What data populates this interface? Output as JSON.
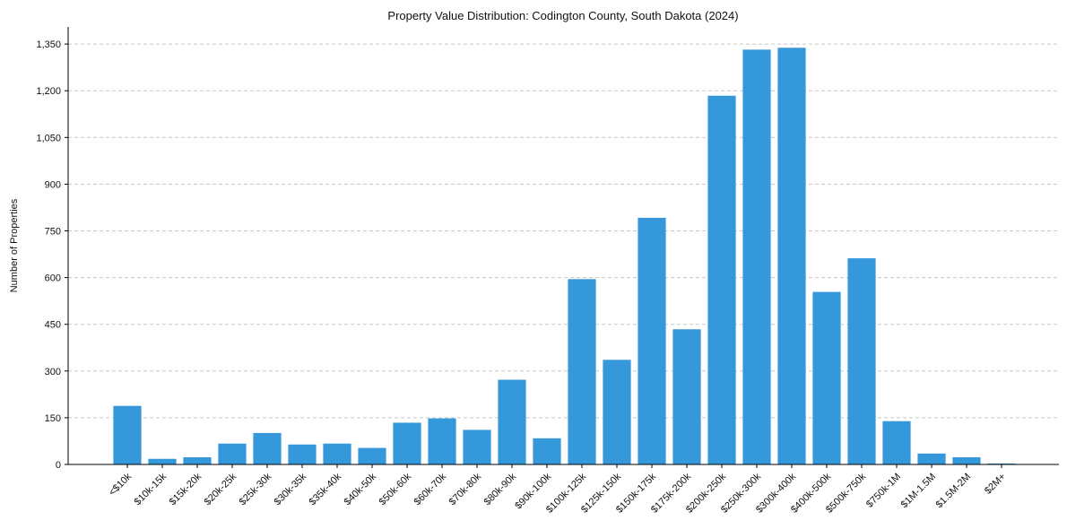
{
  "chart_data": {
    "type": "bar",
    "title": "Property Value Distribution: Codington County, South Dakota (2024)",
    "xlabel": "",
    "ylabel": "Number of Properties",
    "categories": [
      "<$10k",
      "$10k-15k",
      "$15k-20k",
      "$20k-25k",
      "$25k-30k",
      "$30k-35k",
      "$35k-40k",
      "$40k-50k",
      "$50k-60k",
      "$60k-70k",
      "$70k-80k",
      "$80k-90k",
      "$90k-100k",
      "$100k-125k",
      "$125k-150k",
      "$150k-175k",
      "$175k-200k",
      "$200k-250k",
      "$250k-300k",
      "$300k-400k",
      "$400k-500k",
      "$500k-750k",
      "$750k-1M",
      "$1M-1.5M",
      "$1.5M-2M",
      "$2M+"
    ],
    "values": [
      188,
      18,
      23,
      67,
      101,
      64,
      67,
      53,
      134,
      148,
      111,
      272,
      84,
      595,
      336,
      792,
      434,
      1184,
      1332,
      1338,
      554,
      662,
      139,
      35,
      23,
      3
    ],
    "yticks": [
      0,
      150,
      300,
      450,
      600,
      750,
      900,
      1050,
      1200,
      1350
    ],
    "ytick_labels": [
      "0",
      "150",
      "300",
      "450",
      "600",
      "750",
      "900",
      "1,050",
      "1,200",
      "1,350"
    ],
    "ylim": [
      0,
      1405
    ],
    "grid": "y-dashed",
    "bar_color": "#3498db"
  }
}
